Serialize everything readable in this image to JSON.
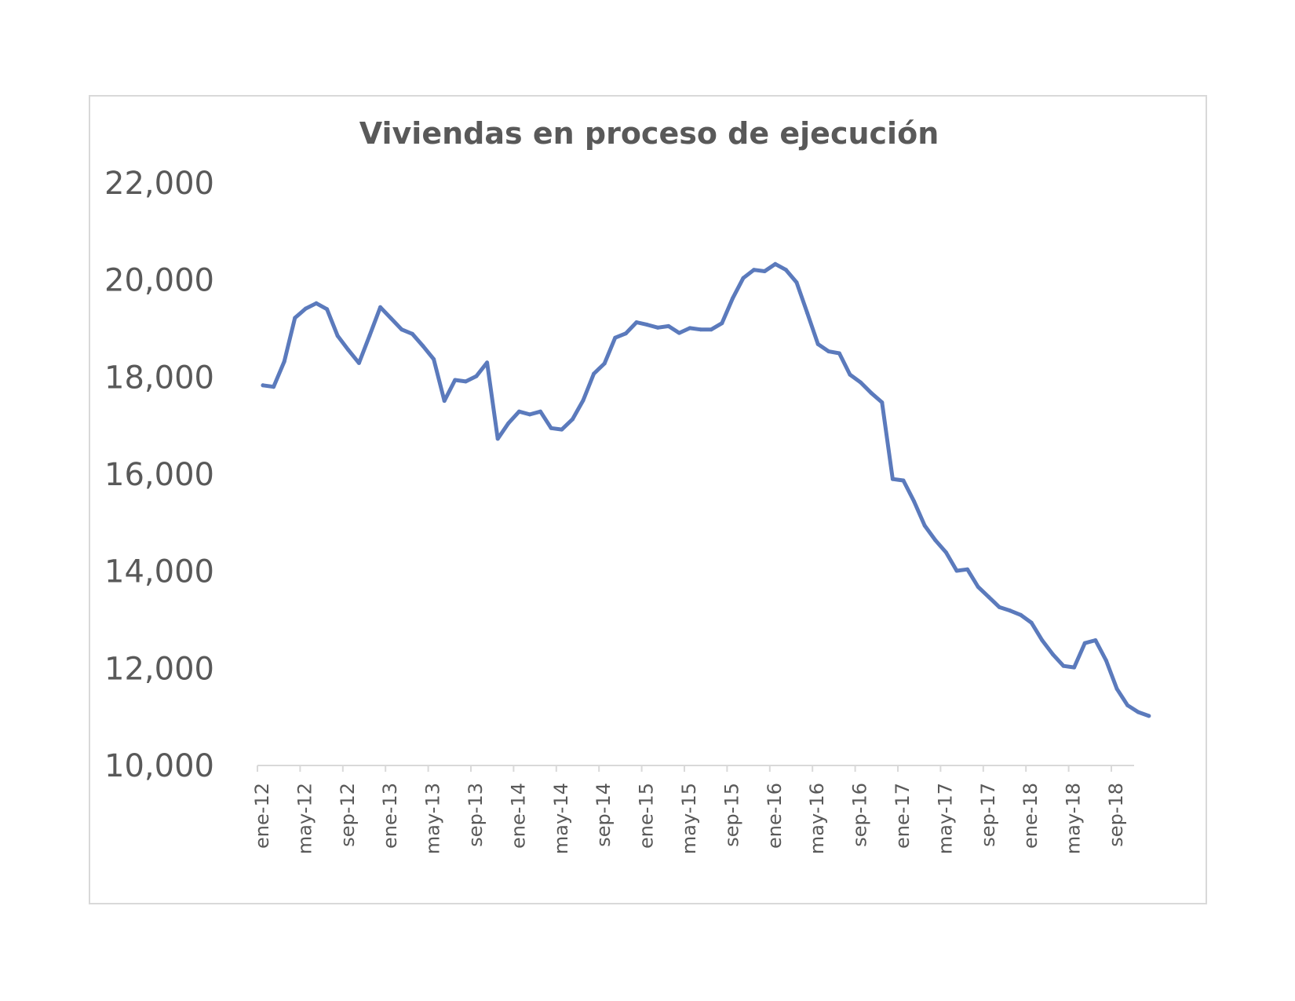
{
  "chart_data": {
    "type": "line",
    "title": "Viviendas en proceso de ejecución",
    "xlabel": "",
    "ylabel": "",
    "ylim": [
      10000,
      22000
    ],
    "y_ticks": [
      "10,000",
      "12,000",
      "14,000",
      "16,000",
      "18,000",
      "20,000",
      "22,000"
    ],
    "y_tick_values": [
      10000,
      12000,
      14000,
      16000,
      18000,
      20000,
      22000
    ],
    "x_tick_labels": [
      "ene-12",
      "may-12",
      "sep-12",
      "ene-13",
      "may-13",
      "sep-13",
      "ene-14",
      "may-14",
      "sep-14",
      "ene-15",
      "may-15",
      "sep-15",
      "ene-16",
      "may-16",
      "sep-16",
      "ene-17",
      "may-17",
      "sep-17",
      "ene-18",
      "may-18",
      "sep-18"
    ],
    "grid": false,
    "legend": "none",
    "line_color": "#5b7abc",
    "series": [
      {
        "values": [
          17830,
          17800,
          18320,
          19220,
          19410,
          19520,
          19400,
          18850,
          18560,
          18290,
          18860,
          19440,
          19210,
          18980,
          18890,
          18640,
          18370,
          17510,
          17940,
          17910,
          18020,
          18300,
          16730,
          17050,
          17290,
          17230,
          17290,
          16950,
          16920,
          17130,
          17520,
          18070,
          18280,
          18810,
          18900,
          19130,
          19080,
          19020,
          19050,
          18910,
          19010,
          18980,
          18980,
          19110,
          19620,
          20040,
          20210,
          20180,
          20330,
          20210,
          19950,
          19320,
          18680,
          18530,
          18490,
          18050,
          17890,
          17670,
          17480,
          15900,
          15870,
          15440,
          14940,
          14640,
          14390,
          14010,
          14040,
          13680,
          13470,
          13260,
          13190,
          13100,
          12940,
          12580,
          12290,
          12050,
          12020,
          12520,
          12580,
          12160,
          11580,
          11240,
          11100,
          11020
        ]
      }
    ]
  }
}
